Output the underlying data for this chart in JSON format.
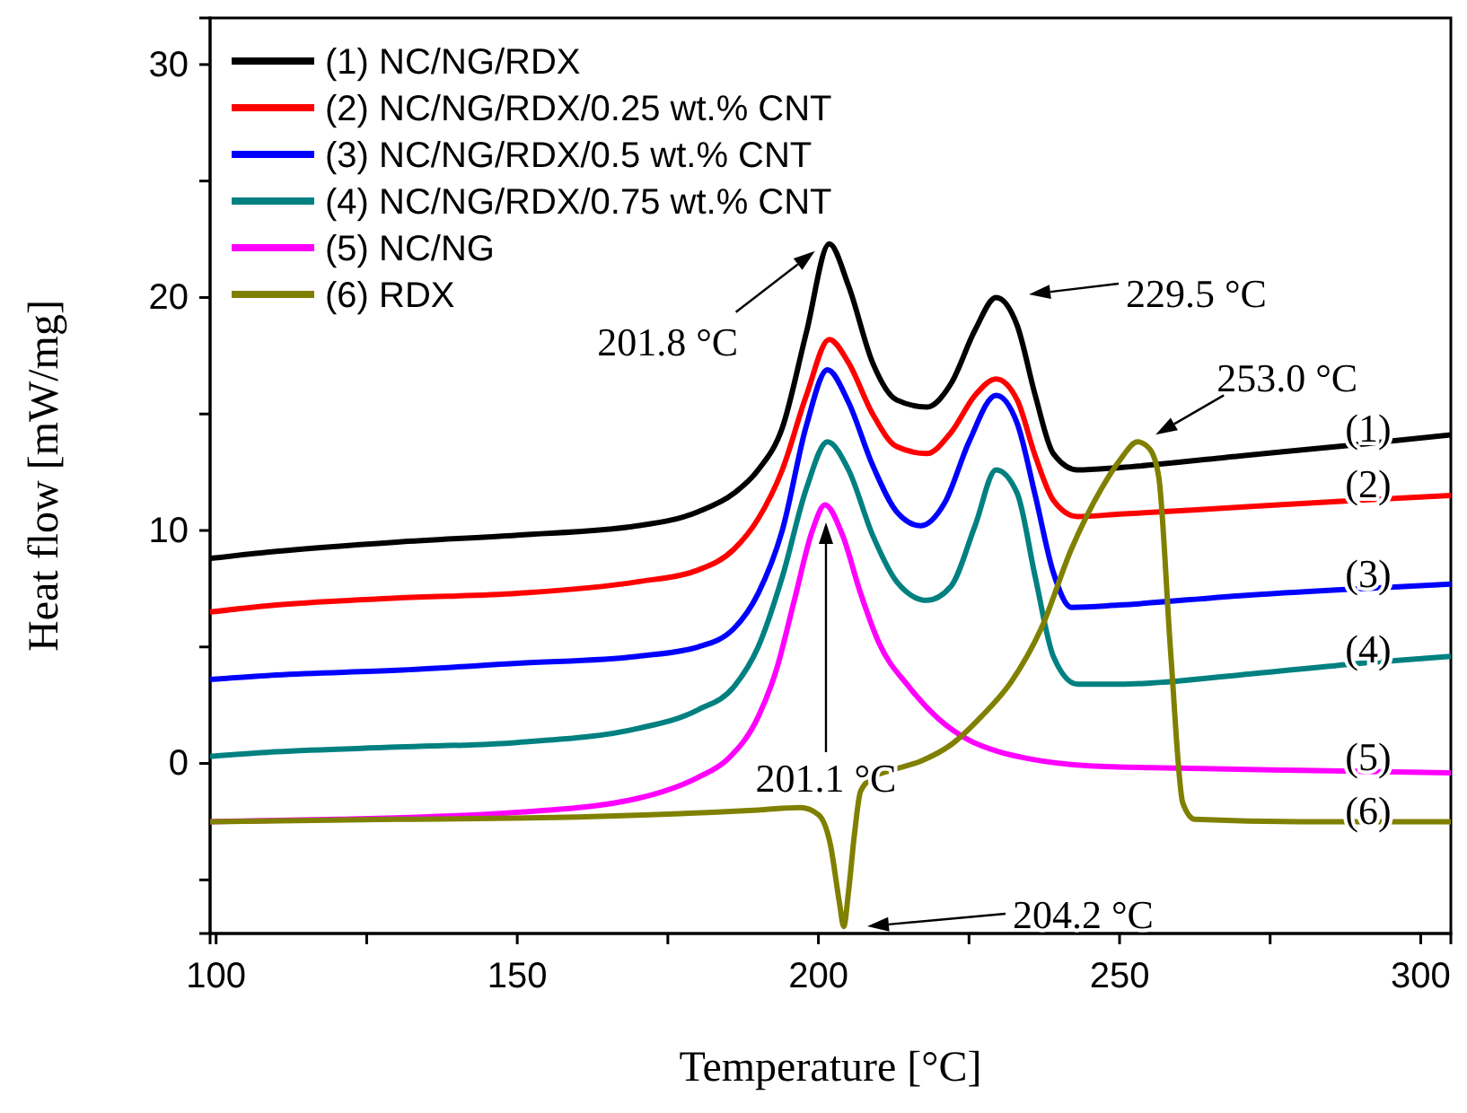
{
  "chart_data": {
    "type": "line",
    "xlabel": "Temperature [°C]",
    "ylabel": "Heat flow [mW/mg]",
    "xlim": [
      99,
      305
    ],
    "ylim": [
      -7.3,
      32
    ],
    "xticks": [
      100,
      {
        "value": 125,
        "label": null
      },
      150,
      {
        "value": 175,
        "label": null
      },
      200,
      {
        "value": 225,
        "label": null
      },
      250,
      {
        "value": 275,
        "label": null
      },
      300
    ],
    "yticks": [
      {
        "value": -5,
        "label": null
      },
      0,
      {
        "value": 5,
        "label": null
      },
      10,
      {
        "value": 15,
        "label": null
      },
      20,
      {
        "value": 25,
        "label": null
      },
      30
    ],
    "grid": false,
    "legend": "top left",
    "marker": "none",
    "line_style": "solid",
    "series": [
      {
        "name": "(1) NC/NG/RDX",
        "color": "#000000",
        "x": [
          99,
          110,
          130,
          150,
          170,
          180,
          186,
          190,
          194,
          198,
          201.8,
          205,
          209,
          213,
          218,
          222,
          226,
          229.5,
          233,
          236,
          239,
          243,
          250,
          270,
          290,
          305
        ],
        "values": [
          8.8,
          9.1,
          9.5,
          9.8,
          10.2,
          10.8,
          11.6,
          12.6,
          14.4,
          18.5,
          22.3,
          20.5,
          17.2,
          15.6,
          15.3,
          16.3,
          18.6,
          20.0,
          18.8,
          15.8,
          13.3,
          12.6,
          12.7,
          13.2,
          13.7,
          14.1
        ]
      },
      {
        "name": "(2) NC/NG/RDX/0.25 wt.% CNT",
        "color": "#ff0000",
        "x": [
          99,
          110,
          130,
          150,
          170,
          180,
          186,
          190,
          194,
          198,
          201.8,
          205,
          209,
          213,
          218,
          222,
          226,
          229.5,
          233,
          236,
          239,
          243,
          250,
          270,
          290,
          305
        ],
        "values": [
          6.5,
          6.8,
          7.1,
          7.3,
          7.8,
          8.3,
          9.2,
          10.5,
          12.6,
          15.8,
          18.2,
          17.2,
          15.0,
          13.6,
          13.3,
          14.2,
          15.8,
          16.5,
          15.6,
          13.2,
          11.3,
          10.6,
          10.7,
          11.0,
          11.3,
          11.5
        ]
      },
      {
        "name": "(3) NC/NG/RDX/0.5 wt.% CNT",
        "color": "#0000ff",
        "x": [
          99,
          110,
          130,
          150,
          170,
          180,
          186,
          190,
          194,
          198,
          201.5,
          205,
          209,
          213,
          217,
          221,
          225,
          229.5,
          233,
          236,
          239,
          242,
          250,
          270,
          290,
          305
        ],
        "values": [
          3.6,
          3.8,
          4.0,
          4.3,
          4.6,
          5.0,
          5.8,
          7.3,
          10.0,
          14.5,
          16.9,
          15.5,
          12.8,
          10.8,
          10.2,
          11.2,
          13.8,
          15.8,
          14.6,
          11.5,
          8.2,
          6.7,
          6.8,
          7.2,
          7.5,
          7.7
        ]
      },
      {
        "name": "(4) NC/NG/RDX/0.75 wt.% CNT",
        "color": "#008080",
        "x": [
          99,
          110,
          130,
          150,
          170,
          180,
          186,
          190,
          194,
          198,
          201.5,
          205,
          209,
          213,
          218,
          222,
          226,
          229.5,
          233,
          236,
          239,
          243,
          250,
          270,
          290,
          305
        ],
        "values": [
          0.3,
          0.5,
          0.7,
          0.9,
          1.5,
          2.3,
          3.3,
          5.0,
          8.0,
          11.8,
          13.8,
          12.6,
          9.8,
          7.8,
          7.0,
          7.6,
          10.2,
          12.6,
          11.6,
          8.0,
          4.6,
          3.4,
          3.4,
          3.8,
          4.3,
          4.6
        ]
      },
      {
        "name": "(5) NC/NG",
        "color": "#ff00ff",
        "x": [
          99,
          120,
          150,
          170,
          180,
          185,
          190,
          193,
          196,
          199,
          201.1,
          204,
          207,
          210,
          215,
          220,
          225,
          230,
          235,
          245,
          260,
          280,
          305
        ],
        "values": [
          -2.5,
          -2.4,
          -2.1,
          -1.5,
          -0.6,
          0.2,
          2.0,
          4.0,
          7.0,
          10.0,
          11.1,
          9.8,
          7.3,
          5.2,
          3.3,
          1.9,
          1.0,
          0.5,
          0.2,
          -0.1,
          -0.2,
          -0.3,
          -0.4
        ]
      },
      {
        "name": "(6) RDX",
        "color": "#808000",
        "x": [
          99,
          130,
          160,
          190,
          197,
          200,
          202,
          203.5,
          204.2,
          205,
          206,
          207,
          209,
          212,
          217,
          222,
          227,
          232,
          237,
          242,
          247,
          250,
          253,
          255,
          256.5,
          258.5,
          260.5,
          262.5,
          280,
          305
        ],
        "values": [
          -2.5,
          -2.4,
          -2.3,
          -2.0,
          -1.9,
          -2.2,
          -3.5,
          -6.0,
          -7.0,
          -5.5,
          -3.0,
          -1.2,
          -0.6,
          -0.3,
          0.1,
          0.8,
          2.0,
          3.5,
          5.8,
          9.2,
          11.8,
          13.0,
          13.8,
          13.5,
          12.3,
          4.7,
          -1.7,
          -2.4,
          -2.5,
          -2.5
        ]
      }
    ],
    "annotations": [
      {
        "text": "201.8 °C",
        "x": 201.8,
        "y": 22.3
      },
      "229.5 °C",
      {
        "text": "253.0 °C",
        "x": 253.0,
        "y": 13.8
      },
      "201.1 °C",
      "204.2 °C",
      "(1)",
      "(2)",
      "(3)",
      "(4)",
      "(5)",
      "(6)"
    ]
  }
}
